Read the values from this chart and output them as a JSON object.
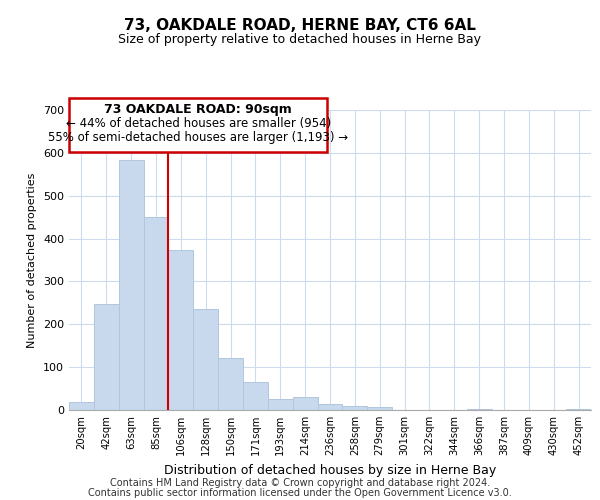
{
  "title": "73, OAKDALE ROAD, HERNE BAY, CT6 6AL",
  "subtitle": "Size of property relative to detached houses in Herne Bay",
  "xlabel": "Distribution of detached houses by size in Herne Bay",
  "ylabel": "Number of detached properties",
  "footnote1": "Contains HM Land Registry data © Crown copyright and database right 2024.",
  "footnote2": "Contains public sector information licensed under the Open Government Licence v3.0.",
  "bar_color": "#c8d9ed",
  "bar_edge_color": "#afc6de",
  "vline_color": "#cc0000",
  "vline_x_index": 3.5,
  "ylim": [
    0,
    700
  ],
  "yticks": [
    0,
    100,
    200,
    300,
    400,
    500,
    600,
    700
  ],
  "categories": [
    "20sqm",
    "42sqm",
    "63sqm",
    "85sqm",
    "106sqm",
    "128sqm",
    "150sqm",
    "171sqm",
    "193sqm",
    "214sqm",
    "236sqm",
    "258sqm",
    "279sqm",
    "301sqm",
    "322sqm",
    "344sqm",
    "366sqm",
    "387sqm",
    "409sqm",
    "430sqm",
    "452sqm"
  ],
  "values": [
    18,
    247,
    584,
    450,
    374,
    236,
    122,
    66,
    25,
    31,
    14,
    10,
    8,
    0,
    0,
    0,
    3,
    0,
    0,
    0,
    2
  ],
  "annotation_title": "73 OAKDALE ROAD: 90sqm",
  "annotation_line1": "← 44% of detached houses are smaller (954)",
  "annotation_line2": "55% of semi-detached houses are larger (1,193) →",
  "title_fontsize": 11,
  "subtitle_fontsize": 9,
  "ylabel_fontsize": 8,
  "xlabel_fontsize": 9,
  "footnote_fontsize": 7
}
